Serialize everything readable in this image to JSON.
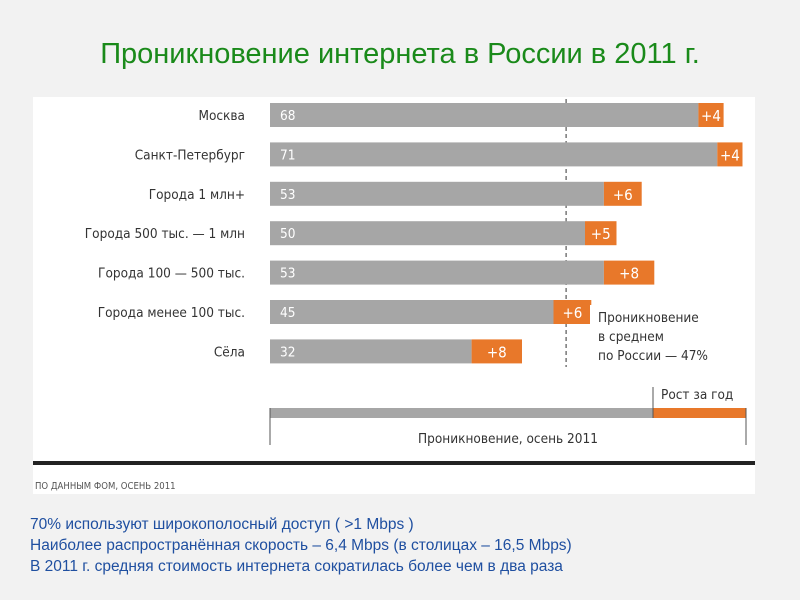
{
  "slide": {
    "title": "Проникновение интернета в России в 2011 г.",
    "bullets": [
      "70% используют широкополосный доступ ( >1 Mbps )",
      "Наиболее распространённая скорость – 6,4 Mbps (в столицах – 16,5 Mbps)",
      "В 2011 г. средняя стоимость интернета сократилась более чем в два раза"
    ]
  },
  "colors": {
    "base_bar": "#a6a6a6",
    "growth_bar": "#e8782a",
    "title": "#1a8a1a",
    "bullet_text": "#1f4fa0",
    "axis_text": "#555555"
  },
  "chart_data": {
    "type": "bar",
    "orientation": "horizontal",
    "stacked": true,
    "categories": [
      "Москва",
      "Санкт-Петербург",
      "Города 1 млн+",
      "Города 500 тыс. — 1 млн",
      "Города 100 — 500 тыс.",
      "Города менее 100 тыс.",
      "Сёла"
    ],
    "series": [
      {
        "name": "Проникновение, осень 2011",
        "values": [
          68,
          71,
          53,
          50,
          53,
          45,
          32
        ],
        "labels": [
          "68",
          "71",
          "53",
          "50",
          "53",
          "45",
          "32"
        ]
      },
      {
        "name": "Рост за год",
        "values": [
          4,
          4,
          6,
          5,
          8,
          6,
          8
        ],
        "labels": [
          "+4",
          "+4",
          "+6",
          "+5",
          "+8",
          "+6",
          "+8"
        ]
      }
    ],
    "xlim": [
      0,
      75
    ],
    "average": {
      "value": 47,
      "label_lines": [
        "Проникновение",
        "в среднем",
        "по России — 47%"
      ]
    },
    "legend": {
      "base_label": "Проникновение, осень 2011",
      "growth_label": "Рост за год"
    },
    "source": "ПО ДАННЫМ ФОМ, ОСЕНЬ 2011"
  }
}
